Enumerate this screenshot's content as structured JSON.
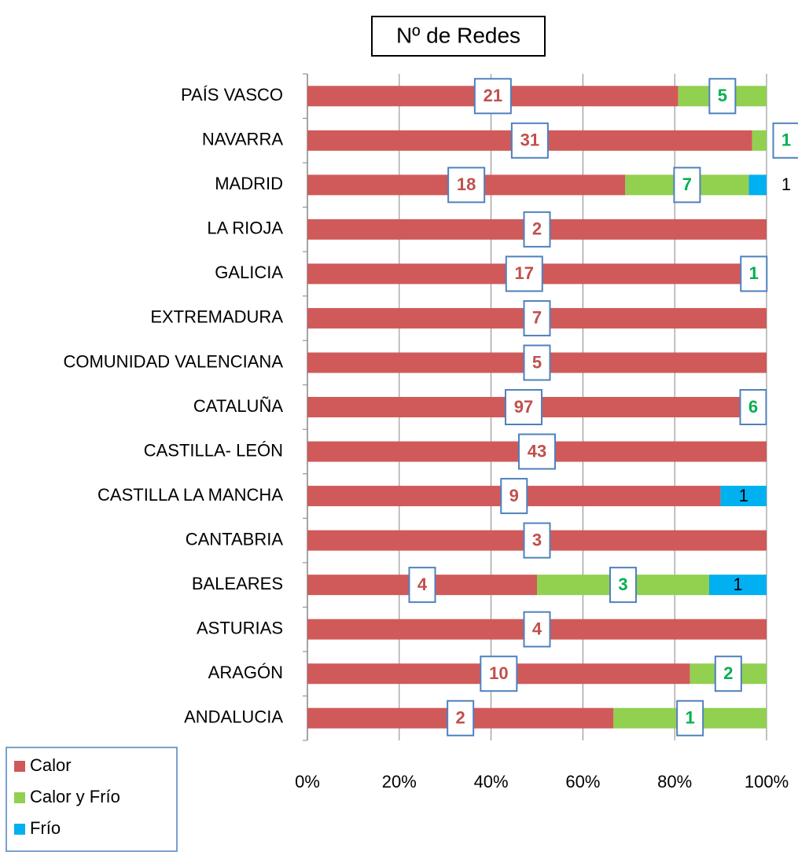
{
  "chart_data": {
    "type": "bar",
    "orientation": "horizontal",
    "stacked": "percent",
    "title": "Nº de Redes",
    "categories": [
      "PAÍS VASCO",
      "NAVARRA",
      "MADRID",
      "LA RIOJA",
      "GALICIA",
      "EXTREMADURA",
      "COMUNIDAD VALENCIANA",
      "CATALUÑA",
      "CASTILLA- LEÓN",
      "CASTILLA LA MANCHA",
      "CANTABRIA",
      "BALEARES",
      "ASTURIAS",
      "ARAGÓN",
      "ANDALUCIA"
    ],
    "series": [
      {
        "name": "Calor",
        "color": "#d05a5a",
        "label_color": "#c0504d",
        "values": [
          21,
          31,
          18,
          2,
          17,
          7,
          5,
          97,
          43,
          9,
          3,
          4,
          4,
          10,
          2
        ]
      },
      {
        "name": "Calor y Frío",
        "color": "#92d050",
        "label_color": "#00b050",
        "values": [
          5,
          1,
          7,
          null,
          1,
          null,
          null,
          6,
          null,
          null,
          null,
          3,
          null,
          2,
          1
        ]
      },
      {
        "name": "Frío",
        "color": "#00b0f0",
        "label_color": "#000000",
        "values": [
          null,
          null,
          1,
          null,
          null,
          null,
          null,
          null,
          null,
          1,
          null,
          1,
          null,
          null,
          null
        ]
      }
    ],
    "xlim": [
      0,
      100
    ],
    "xticks": [
      {
        "value": 0,
        "label": "0%"
      },
      {
        "value": 20,
        "label": "20%"
      },
      {
        "value": 40,
        "label": "40%"
      },
      {
        "value": 60,
        "label": "60%"
      },
      {
        "value": 80,
        "label": "80%"
      },
      {
        "value": 100,
        "label": "100%"
      }
    ],
    "grid": true,
    "legend": "bottom-left"
  }
}
